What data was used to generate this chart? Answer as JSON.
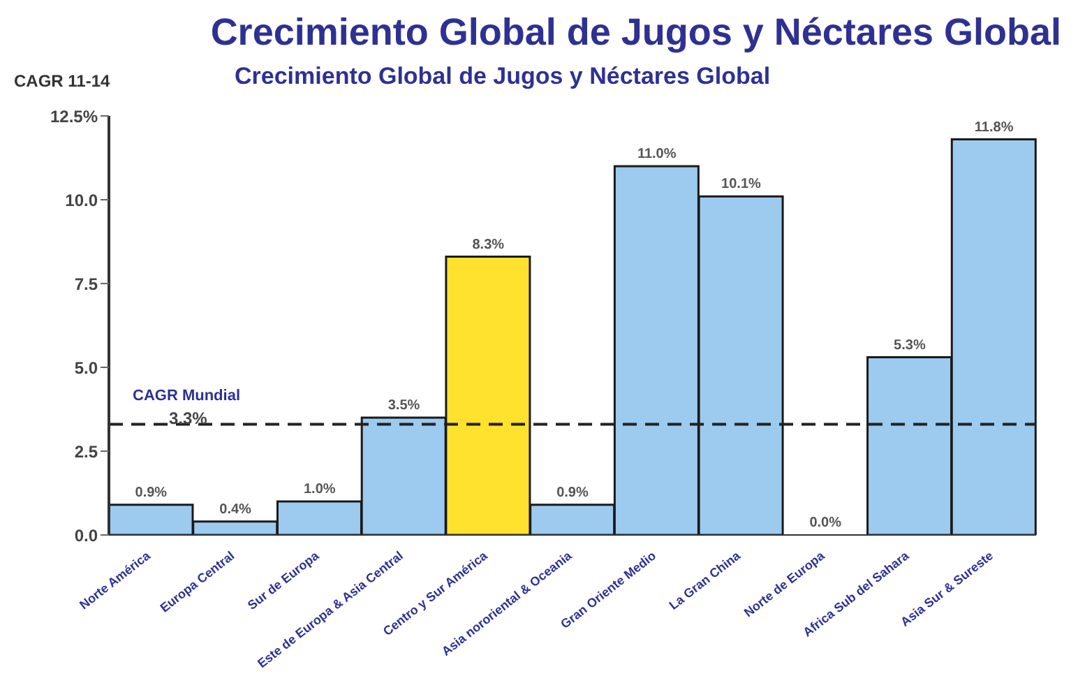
{
  "chart_data": {
    "type": "bar",
    "title": "Crecimiento Global de Jugos y Néctares Global",
    "subtitle": "Crecimiento Global de Jugos y Néctares Global",
    "ylabel": "CAGR 11-14",
    "categories": [
      "Norte América",
      "Europa Central",
      "Sur de Europa",
      "Este de Europa & Asia Central",
      "Centro y Sur América",
      "Asia nororiental & Oceania",
      "Gran Oriente Medio",
      "La Gran China",
      "Norte de Europa",
      "Africa Sub del Sahara",
      "Asia Sur & Sureste"
    ],
    "values": [
      0.9,
      0.4,
      1.0,
      3.5,
      8.3,
      0.9,
      11.0,
      10.1,
      0.0,
      5.3,
      11.8
    ],
    "colors": [
      "#9dcbef",
      "#9dcbef",
      "#9dcbef",
      "#9dcbef",
      "#ffe22e",
      "#9dcbef",
      "#9dcbef",
      "#9dcbef",
      "#9dcbef",
      "#9dcbef",
      "#9dcbef"
    ],
    "value_labels": [
      "0.9%",
      "0.4%",
      "1.0%",
      "3.5%",
      "8.3%",
      "0.9%",
      "11.0%",
      "10.1%",
      "0.0%",
      "5.3%",
      "11.8%"
    ],
    "ylim": [
      0,
      12.5
    ],
    "yticks": [
      {
        "value": 0,
        "label": "0.0"
      },
      {
        "value": 2.5,
        "label": "2.5"
      },
      {
        "value": 5,
        "label": "5.0"
      },
      {
        "value": 7.5,
        "label": "7.5"
      },
      {
        "value": 10,
        "label": "10.0"
      },
      {
        "value": 12.5,
        "label": "12.5%"
      }
    ],
    "ref_lines": [
      {
        "axis": "y",
        "value": 3.3,
        "label": "CAGR Mundial",
        "color": "#222222",
        "line_style": "dashed"
      }
    ],
    "annotations": [
      {
        "text": "3.3%",
        "y": 3.3
      }
    ]
  }
}
